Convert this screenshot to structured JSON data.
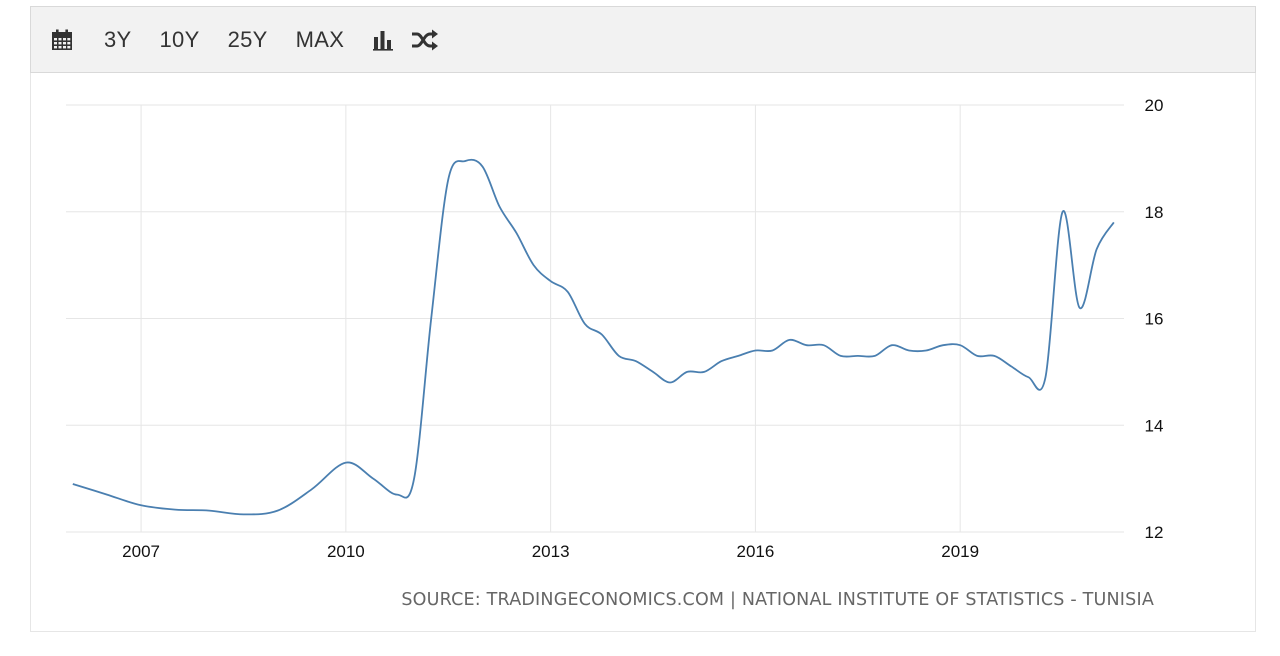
{
  "toolbar": {
    "calendar_icon": "calendar-icon",
    "buttons": [
      "3Y",
      "10Y",
      "25Y",
      "MAX"
    ],
    "bar_chart_icon": "bar-chart-icon",
    "compare_icon": "shuffle-icon"
  },
  "source": "SOURCE: TRADINGECONOMICS.COM | NATIONAL INSTITUTE OF STATISTICS - TUNISIA",
  "chart_data": {
    "type": "line",
    "title": "",
    "xlabel": "",
    "ylabel": "",
    "x_ticks": [
      "2007",
      "2010",
      "2013",
      "2016",
      "2019"
    ],
    "y_ticks": [
      "12",
      "14",
      "16",
      "18",
      "20"
    ],
    "xlim": [
      2005.9,
      2021.4
    ],
    "ylim": [
      12,
      20
    ],
    "grid": true,
    "line_color": "#4a7fb0",
    "series": [
      {
        "x": [
          2006.0,
          2006.5,
          2007.0,
          2007.5,
          2008.0,
          2008.5,
          2009.0,
          2009.5,
          2010.0,
          2010.4,
          2010.75,
          2011.0,
          2011.25,
          2011.5,
          2011.75,
          2012.0,
          2012.25,
          2012.5,
          2012.75,
          2013.0,
          2013.25,
          2013.5,
          2013.75,
          2014.0,
          2014.25,
          2014.5,
          2014.75,
          2015.0,
          2015.25,
          2015.5,
          2015.75,
          2016.0,
          2016.25,
          2016.5,
          2016.75,
          2017.0,
          2017.25,
          2017.5,
          2017.75,
          2018.0,
          2018.25,
          2018.5,
          2018.75,
          2019.0,
          2019.25,
          2019.5,
          2019.75,
          2020.0,
          2020.25,
          2020.5,
          2020.75,
          2021.0,
          2021.25
        ],
        "y": [
          12.9,
          12.7,
          12.5,
          12.42,
          12.4,
          12.33,
          12.4,
          12.8,
          13.3,
          13.0,
          12.7,
          13.0,
          16.0,
          18.6,
          18.95,
          18.85,
          18.1,
          17.6,
          17.0,
          16.7,
          16.5,
          15.9,
          15.7,
          15.3,
          15.2,
          15.0,
          14.8,
          15.0,
          15.0,
          15.2,
          15.3,
          15.4,
          15.4,
          15.6,
          15.5,
          15.5,
          15.3,
          15.3,
          15.3,
          15.5,
          15.4,
          15.4,
          15.5,
          15.5,
          15.3,
          15.3,
          15.1,
          14.9,
          14.9,
          18.0,
          16.2,
          17.3,
          17.8
        ]
      }
    ]
  }
}
